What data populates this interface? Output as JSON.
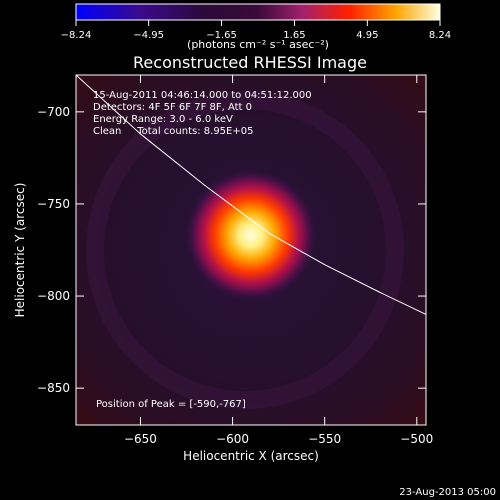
{
  "chart_data": {
    "type": "heatmap",
    "title": "Reconstructed RHESSI Image",
    "xlabel": "Heliocentric X (arcsec)",
    "ylabel": "Heliocentric Y (arcsec)",
    "xlim": [
      -685,
      -495
    ],
    "ylim": [
      -870,
      -680
    ],
    "x_ticks": [
      -650,
      -600,
      -550,
      -500
    ],
    "y_ticks": [
      -700,
      -750,
      -800,
      -850
    ],
    "colorbar": {
      "range": [
        -8.24,
        8.24
      ],
      "tick_labels": [
        "-8.24",
        "-4.95",
        "-1.65",
        "1.65",
        "4.95",
        "8.24"
      ],
      "label": "(photons cm⁻² s⁻¹ asec⁻²)",
      "colormap": [
        "#0000ff",
        "#5a1480",
        "#000000",
        "#a0206e",
        "#ff2000",
        "#ffa500",
        "#ffffe0"
      ]
    },
    "annotations": [
      "15-Aug-2011 04:46:14.000 to 04:51:12.000",
      "Detectors: 4F 5F 6F 7F 8F, Att 0",
      "Energy Range: 3.0 - 6.0 keV",
      "Clean     Total counts: 8.95E+05"
    ],
    "peak_label": "Position of Peak = [-590,-767]",
    "peak": {
      "x": -590,
      "y": -767,
      "value": 8.24,
      "sigma_arcsec": 12
    },
    "limb_curve": [
      [
        -685,
        -680
      ],
      [
        -650,
        -712
      ],
      [
        -615,
        -740
      ],
      [
        -580,
        -766
      ],
      [
        -550,
        -783
      ],
      [
        -520,
        -798
      ],
      [
        -495,
        -810
      ]
    ],
    "footer": "23-Aug-2013 05:00"
  }
}
